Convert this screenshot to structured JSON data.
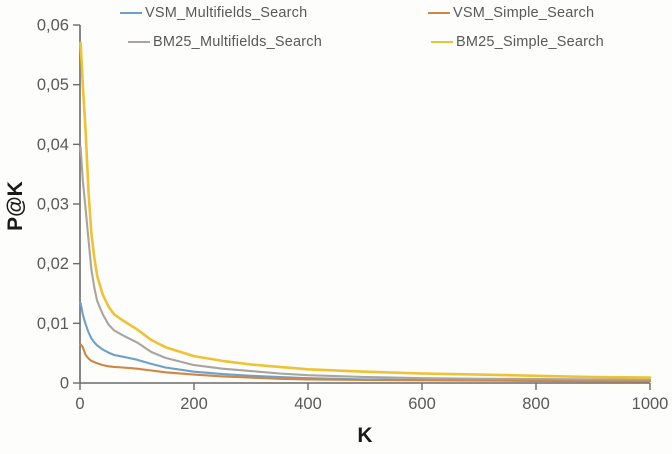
{
  "chart_data": {
    "type": "line",
    "title": "",
    "xlabel": "K",
    "ylabel": "P@K",
    "xlim": [
      0,
      1000
    ],
    "ylim": [
      0,
      0.06
    ],
    "grid": false,
    "legend_position": "top",
    "x_ticks": [
      0,
      200,
      400,
      600,
      800,
      1000
    ],
    "x_tick_labels": [
      "0",
      "200",
      "400",
      "600",
      "800",
      "1000"
    ],
    "y_ticks": [
      0,
      0.01,
      0.02,
      0.03,
      0.04,
      0.05,
      0.06
    ],
    "y_tick_labels": [
      "0",
      "0,01",
      "0,02",
      "0,03",
      "0,04",
      "0,05",
      "0,06"
    ],
    "x": [
      1,
      5,
      10,
      15,
      20,
      25,
      30,
      40,
      50,
      60,
      75,
      100,
      125,
      150,
      200,
      250,
      300,
      350,
      400,
      500,
      600,
      700,
      800,
      900,
      1000
    ],
    "series": [
      {
        "name": "VSM_Multifields_Search",
        "color": "#6FA0C8",
        "values": [
          0.0134,
          0.0115,
          0.0098,
          0.0085,
          0.0075,
          0.0068,
          0.0063,
          0.0056,
          0.0051,
          0.0047,
          0.0044,
          0.0039,
          0.0032,
          0.0026,
          0.0019,
          0.0015,
          0.0012,
          0.001,
          0.0008,
          0.0006,
          0.0005,
          0.00045,
          0.0004,
          0.00035,
          0.0003
        ]
      },
      {
        "name": "VSM_Simple_Search",
        "color": "#D08542",
        "values": [
          0.0065,
          0.006,
          0.0047,
          0.0041,
          0.0037,
          0.0035,
          0.0033,
          0.003,
          0.0028,
          0.0027,
          0.0026,
          0.0024,
          0.0021,
          0.0018,
          0.0014,
          0.0011,
          0.0009,
          0.0007,
          0.0006,
          0.0005,
          0.00045,
          0.0004,
          0.00035,
          0.0003,
          0.00028
        ]
      },
      {
        "name": "BM25_Multifields_Search",
        "color": "#A9A49E",
        "values": [
          0.0395,
          0.034,
          0.029,
          0.024,
          0.019,
          0.016,
          0.0138,
          0.0115,
          0.0098,
          0.0088,
          0.008,
          0.0068,
          0.0052,
          0.0042,
          0.003,
          0.0024,
          0.002,
          0.0016,
          0.0013,
          0.001,
          0.0008,
          0.0007,
          0.00065,
          0.0006,
          0.00055
        ]
      },
      {
        "name": "BM25_Simple_Search",
        "color": "#EFC233",
        "values": [
          0.057,
          0.05,
          0.042,
          0.032,
          0.025,
          0.021,
          0.018,
          0.0148,
          0.0128,
          0.0115,
          0.0105,
          0.009,
          0.0072,
          0.006,
          0.0045,
          0.0037,
          0.0031,
          0.0027,
          0.0023,
          0.0019,
          0.0016,
          0.0014,
          0.0012,
          0.001,
          0.0009
        ]
      }
    ],
    "axis_color": "#6b6b6b",
    "tick_label_color": "#595959"
  },
  "legend": {
    "order": [
      0,
      1,
      2,
      3
    ]
  }
}
